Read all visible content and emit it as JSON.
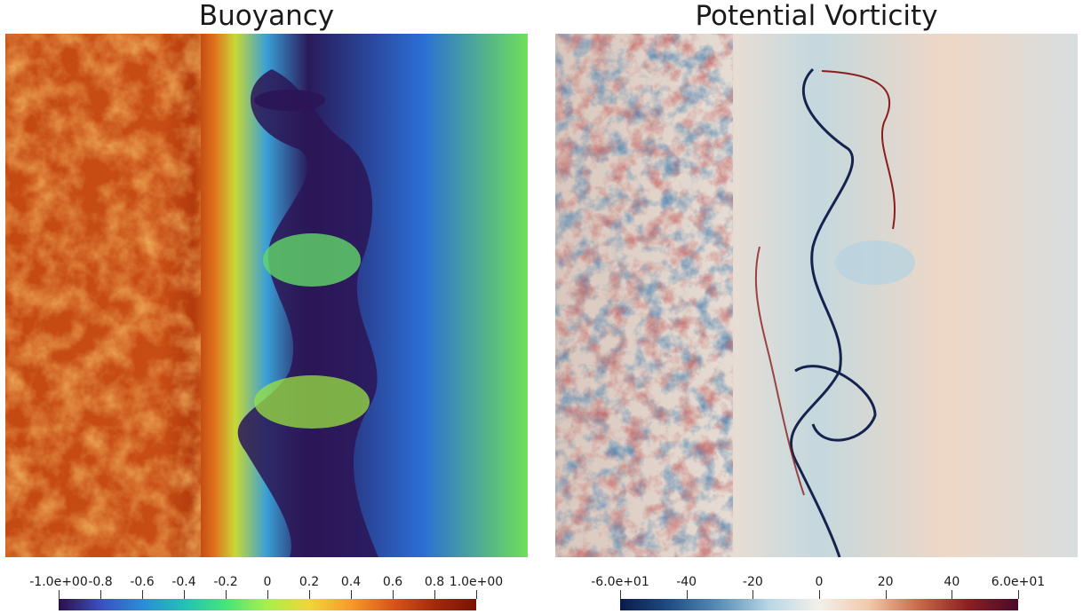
{
  "panels": [
    {
      "title": "Buoyancy",
      "colorbar": {
        "ticks": [
          "-1.0e+00",
          "-0.8",
          "-0.6",
          "-0.4",
          "-0.2",
          "0",
          "0.2",
          "0.4",
          "0.6",
          "0.8",
          "1.0e+00"
        ],
        "values": [
          -1.0,
          -0.8,
          -0.6,
          -0.4,
          -0.2,
          0,
          0.2,
          0.4,
          0.6,
          0.8,
          1.0
        ],
        "range": [
          -1.0,
          1.0
        ],
        "colormap": [
          "#2c0f4a",
          "#3b4fbf",
          "#2a8cd8",
          "#23c0b8",
          "#46e57a",
          "#a8f04a",
          "#f0d63a",
          "#f79a2a",
          "#d9551a",
          "#a52a0a",
          "#7a1203"
        ]
      }
    },
    {
      "title": "Potential Vorticity",
      "colorbar": {
        "ticks": [
          "-6.0e+01",
          "-40",
          "-20",
          "0",
          "20",
          "40",
          "6.0e+01"
        ],
        "values": [
          -60,
          -40,
          -20,
          0,
          20,
          40,
          60
        ],
        "range": [
          -60,
          60
        ],
        "colormap": [
          "#0a1a4a",
          "#1f4e86",
          "#5a8fb8",
          "#b9d7e6",
          "#f3f0ea",
          "#f1c9a9",
          "#c86a48",
          "#8c1e22",
          "#4a0a2a"
        ]
      }
    }
  ]
}
